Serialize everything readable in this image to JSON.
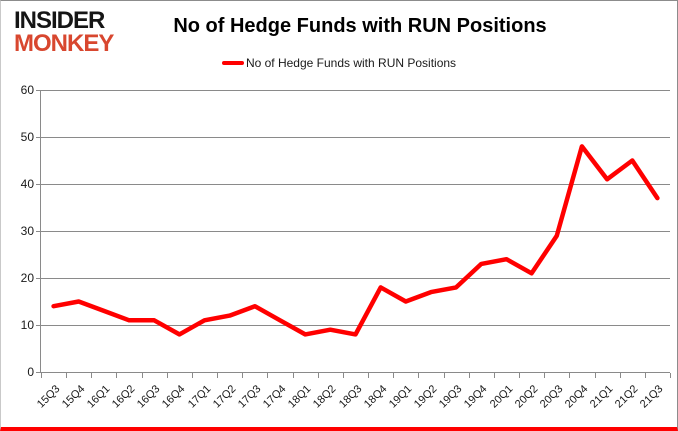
{
  "logo": {
    "line1": "INSIDER",
    "line2": "MONKEY"
  },
  "header": {
    "title": "No of Hedge Funds with RUN Positions"
  },
  "legend": {
    "label": "No of Hedge Funds with RUN Positions"
  },
  "colors": {
    "line": "#ff0000",
    "logo_red": "#d8472f",
    "grid": "#8a8a8a",
    "bottom_bar": "#ff0000"
  },
  "chart_data": {
    "type": "line",
    "title": "No of Hedge Funds with RUN Positions",
    "categories": [
      "15Q3",
      "15Q4",
      "16Q1",
      "16Q2",
      "16Q3",
      "16Q4",
      "17Q1",
      "17Q2",
      "17Q3",
      "17Q4",
      "18Q1",
      "18Q2",
      "18Q3",
      "18Q4",
      "19Q1",
      "19Q2",
      "19Q3",
      "19Q4",
      "20Q1",
      "20Q2",
      "20Q3",
      "20Q4",
      "21Q1",
      "21Q2",
      "21Q3"
    ],
    "series": [
      {
        "name": "No of Hedge Funds with RUN Positions",
        "color": "#ff0000",
        "values": [
          14,
          15,
          13,
          11,
          11,
          8,
          11,
          12,
          14,
          11,
          8,
          9,
          8,
          18,
          15,
          17,
          18,
          23,
          24,
          21,
          29,
          48,
          41,
          45,
          37
        ]
      }
    ],
    "xlabel": "",
    "ylabel": "",
    "ylim": [
      0,
      60
    ],
    "yticks": [
      0,
      10,
      20,
      30,
      40,
      50,
      60
    ],
    "grid": true,
    "legend_position": "top-center"
  }
}
